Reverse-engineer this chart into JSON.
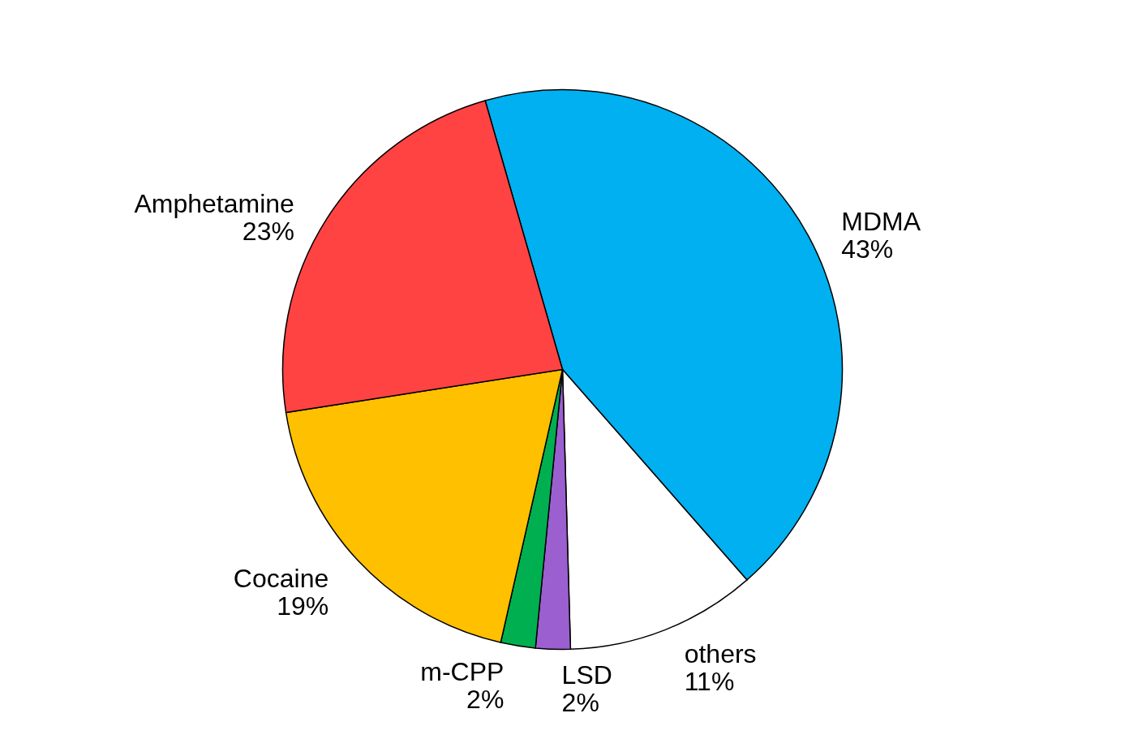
{
  "chart_data": {
    "type": "pie",
    "categories": [
      "MDMA",
      "others",
      "LSD",
      "m-CPP",
      "Cocaine",
      "Amphetamine"
    ],
    "values": [
      43,
      11,
      2,
      2,
      19,
      23
    ],
    "value_labels": [
      "43%",
      "11%",
      "2%",
      "2%",
      "19%",
      "23%"
    ],
    "colors": [
      "#00b0f0",
      "#ffffff",
      "#9b5fd0",
      "#00b050",
      "#ffc000",
      "#ff4343"
    ],
    "legend": false
  }
}
